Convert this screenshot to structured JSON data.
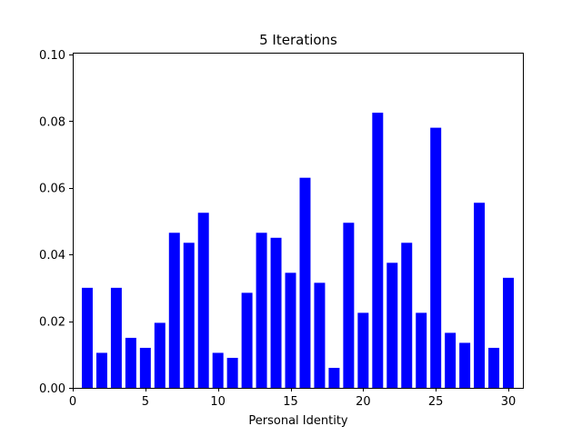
{
  "chart_data": {
    "type": "bar",
    "title": "5 Iterations",
    "xlabel": "Personal Identity",
    "ylabel": "",
    "x": [
      1,
      2,
      3,
      4,
      5,
      6,
      7,
      8,
      9,
      10,
      11,
      12,
      13,
      14,
      15,
      16,
      17,
      18,
      19,
      20,
      21,
      22,
      23,
      24,
      25,
      26,
      27,
      28,
      29,
      30
    ],
    "values": [
      0.03,
      0.0105,
      0.03,
      0.015,
      0.012,
      0.0195,
      0.0465,
      0.0435,
      0.0525,
      0.0105,
      0.009,
      0.0285,
      0.0465,
      0.045,
      0.0345,
      0.063,
      0.0315,
      0.006,
      0.0495,
      0.0225,
      0.0825,
      0.0375,
      0.0435,
      0.0225,
      0.078,
      0.0165,
      0.0135,
      0.0555,
      0.012,
      0.033
    ],
    "xlim": [
      0,
      31
    ],
    "ylim": [
      0,
      0.1005
    ],
    "xticks": [
      0,
      5,
      10,
      15,
      20,
      25,
      30
    ],
    "yticks": [
      0.0,
      0.02,
      0.04,
      0.06,
      0.08,
      0.1
    ],
    "ytick_labels": [
      "0.00",
      "0.02",
      "0.04",
      "0.06",
      "0.08",
      "0.10"
    ],
    "bar_color": "#0000ff",
    "grid": false,
    "legend": "none"
  }
}
